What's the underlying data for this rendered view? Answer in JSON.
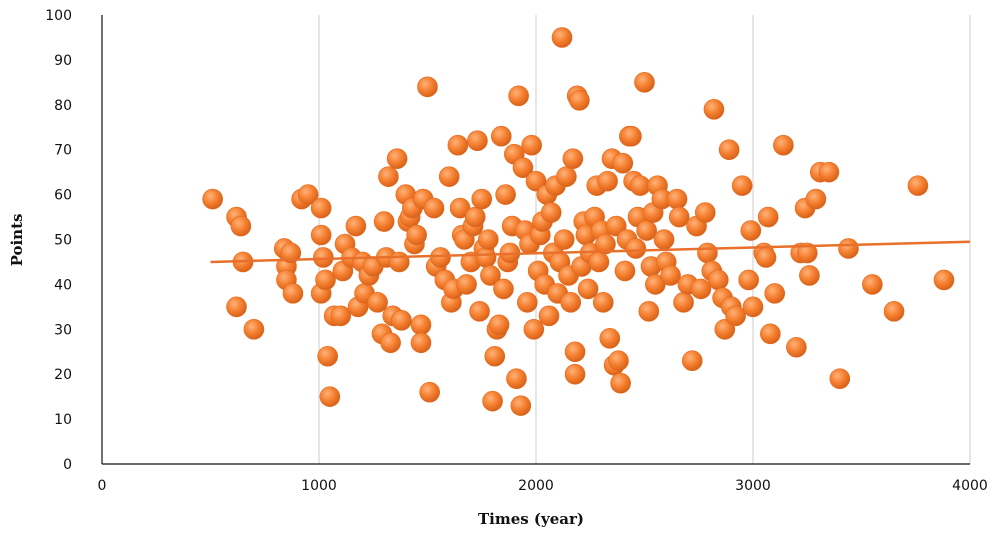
{
  "chart_data": {
    "type": "scatter",
    "xlabel": "Times (year)",
    "ylabel": "Points",
    "xlim": [
      0,
      4000
    ],
    "ylim": [
      0,
      100
    ],
    "xticks": [
      0,
      1000,
      2000,
      3000,
      4000
    ],
    "yticks": [
      0,
      10,
      20,
      30,
      40,
      50,
      60,
      70,
      80,
      90,
      100
    ],
    "grid": "vertical",
    "colors": {
      "marker": "#f07a2a",
      "marker_highlight": "#ffb27a",
      "trend": "#e8702a",
      "grid": "#cccccc",
      "axis": "#111111"
    },
    "trendline": {
      "x": [
        500,
        4000
      ],
      "y": [
        45,
        49.5
      ]
    },
    "points": [
      [
        510,
        59
      ],
      [
        620,
        55
      ],
      [
        640,
        53
      ],
      [
        650,
        45
      ],
      [
        620,
        35
      ],
      [
        700,
        30
      ],
      [
        840,
        48
      ],
      [
        850,
        44
      ],
      [
        850,
        41
      ],
      [
        870,
        47
      ],
      [
        880,
        38
      ],
      [
        920,
        59
      ],
      [
        950,
        60
      ],
      [
        1010,
        57
      ],
      [
        1010,
        51
      ],
      [
        1020,
        46
      ],
      [
        1010,
        38
      ],
      [
        1030,
        41
      ],
      [
        1040,
        24
      ],
      [
        1050,
        15
      ],
      [
        1070,
        33
      ],
      [
        1100,
        33
      ],
      [
        1110,
        43
      ],
      [
        1120,
        49
      ],
      [
        1150,
        46
      ],
      [
        1170,
        53
      ],
      [
        1180,
        35
      ],
      [
        1200,
        45
      ],
      [
        1210,
        38
      ],
      [
        1230,
        42
      ],
      [
        1250,
        44
      ],
      [
        1270,
        36
      ],
      [
        1290,
        29
      ],
      [
        1300,
        54
      ],
      [
        1310,
        46
      ],
      [
        1320,
        64
      ],
      [
        1330,
        27
      ],
      [
        1340,
        33
      ],
      [
        1360,
        68
      ],
      [
        1370,
        45
      ],
      [
        1380,
        32
      ],
      [
        1400,
        60
      ],
      [
        1410,
        54
      ],
      [
        1420,
        55
      ],
      [
        1430,
        57
      ],
      [
        1440,
        49
      ],
      [
        1450,
        51
      ],
      [
        1470,
        31
      ],
      [
        1470,
        27
      ],
      [
        1480,
        59
      ],
      [
        1500,
        84
      ],
      [
        1510,
        16
      ],
      [
        1530,
        57
      ],
      [
        1540,
        44
      ],
      [
        1560,
        46
      ],
      [
        1580,
        41
      ],
      [
        1600,
        64
      ],
      [
        1610,
        36
      ],
      [
        1620,
        39
      ],
      [
        1640,
        71
      ],
      [
        1650,
        57
      ],
      [
        1660,
        51
      ],
      [
        1670,
        50
      ],
      [
        1680,
        40
      ],
      [
        1700,
        45
      ],
      [
        1710,
        53
      ],
      [
        1720,
        55
      ],
      [
        1730,
        72
      ],
      [
        1740,
        34
      ],
      [
        1750,
        59
      ],
      [
        1760,
        48
      ],
      [
        1770,
        46
      ],
      [
        1780,
        50
      ],
      [
        1790,
        42
      ],
      [
        1800,
        14
      ],
      [
        1810,
        24
      ],
      [
        1820,
        30
      ],
      [
        1830,
        31
      ],
      [
        1840,
        73
      ],
      [
        1850,
        39
      ],
      [
        1860,
        60
      ],
      [
        1870,
        45
      ],
      [
        1880,
        47
      ],
      [
        1890,
        53
      ],
      [
        1900,
        69
      ],
      [
        1910,
        19
      ],
      [
        1920,
        82
      ],
      [
        1930,
        13
      ],
      [
        1940,
        66
      ],
      [
        1950,
        52
      ],
      [
        1960,
        36
      ],
      [
        1970,
        49
      ],
      [
        1980,
        71
      ],
      [
        1990,
        30
      ],
      [
        2000,
        63
      ],
      [
        2010,
        43
      ],
      [
        2020,
        51
      ],
      [
        2030,
        54
      ],
      [
        2040,
        40
      ],
      [
        2050,
        60
      ],
      [
        2060,
        33
      ],
      [
        2070,
        56
      ],
      [
        2080,
        47
      ],
      [
        2090,
        62
      ],
      [
        2100,
        38
      ],
      [
        2110,
        45
      ],
      [
        2120,
        95
      ],
      [
        2130,
        50
      ],
      [
        2140,
        64
      ],
      [
        2150,
        42
      ],
      [
        2160,
        36
      ],
      [
        2170,
        68
      ],
      [
        2180,
        25
      ],
      [
        2180,
        20
      ],
      [
        2190,
        82
      ],
      [
        2200,
        81
      ],
      [
        2210,
        44
      ],
      [
        2220,
        54
      ],
      [
        2230,
        51
      ],
      [
        2240,
        39
      ],
      [
        2250,
        47
      ],
      [
        2270,
        55
      ],
      [
        2280,
        62
      ],
      [
        2290,
        45
      ],
      [
        2300,
        52
      ],
      [
        2310,
        36
      ],
      [
        2320,
        49
      ],
      [
        2330,
        63
      ],
      [
        2340,
        28
      ],
      [
        2350,
        68
      ],
      [
        2360,
        22
      ],
      [
        2370,
        53
      ],
      [
        2380,
        23
      ],
      [
        2390,
        18
      ],
      [
        2400,
        67
      ],
      [
        2410,
        43
      ],
      [
        2420,
        50
      ],
      [
        2430,
        73
      ],
      [
        2440,
        73
      ],
      [
        2450,
        63
      ],
      [
        2460,
        48
      ],
      [
        2470,
        55
      ],
      [
        2480,
        62
      ],
      [
        2500,
        85
      ],
      [
        2510,
        52
      ],
      [
        2520,
        34
      ],
      [
        2530,
        44
      ],
      [
        2540,
        56
      ],
      [
        2550,
        40
      ],
      [
        2560,
        62
      ],
      [
        2580,
        59
      ],
      [
        2590,
        50
      ],
      [
        2600,
        45
      ],
      [
        2620,
        42
      ],
      [
        2650,
        59
      ],
      [
        2660,
        55
      ],
      [
        2680,
        36
      ],
      [
        2700,
        40
      ],
      [
        2720,
        23
      ],
      [
        2740,
        53
      ],
      [
        2760,
        39
      ],
      [
        2780,
        56
      ],
      [
        2790,
        47
      ],
      [
        2810,
        43
      ],
      [
        2820,
        79
      ],
      [
        2840,
        41
      ],
      [
        2860,
        37
      ],
      [
        2870,
        30
      ],
      [
        2890,
        70
      ],
      [
        2900,
        35
      ],
      [
        2920,
        33
      ],
      [
        2950,
        62
      ],
      [
        2980,
        41
      ],
      [
        2990,
        52
      ],
      [
        3000,
        35
      ],
      [
        3050,
        47
      ],
      [
        3060,
        46
      ],
      [
        3070,
        55
      ],
      [
        3080,
        29
      ],
      [
        3100,
        38
      ],
      [
        3140,
        71
      ],
      [
        3200,
        26
      ],
      [
        3220,
        47
      ],
      [
        3240,
        57
      ],
      [
        3250,
        47
      ],
      [
        3260,
        42
      ],
      [
        3290,
        59
      ],
      [
        3310,
        65
      ],
      [
        3350,
        65
      ],
      [
        3400,
        19
      ],
      [
        3440,
        48
      ],
      [
        3550,
        40
      ],
      [
        3650,
        34
      ],
      [
        3760,
        62
      ],
      [
        3880,
        41
      ]
    ]
  }
}
